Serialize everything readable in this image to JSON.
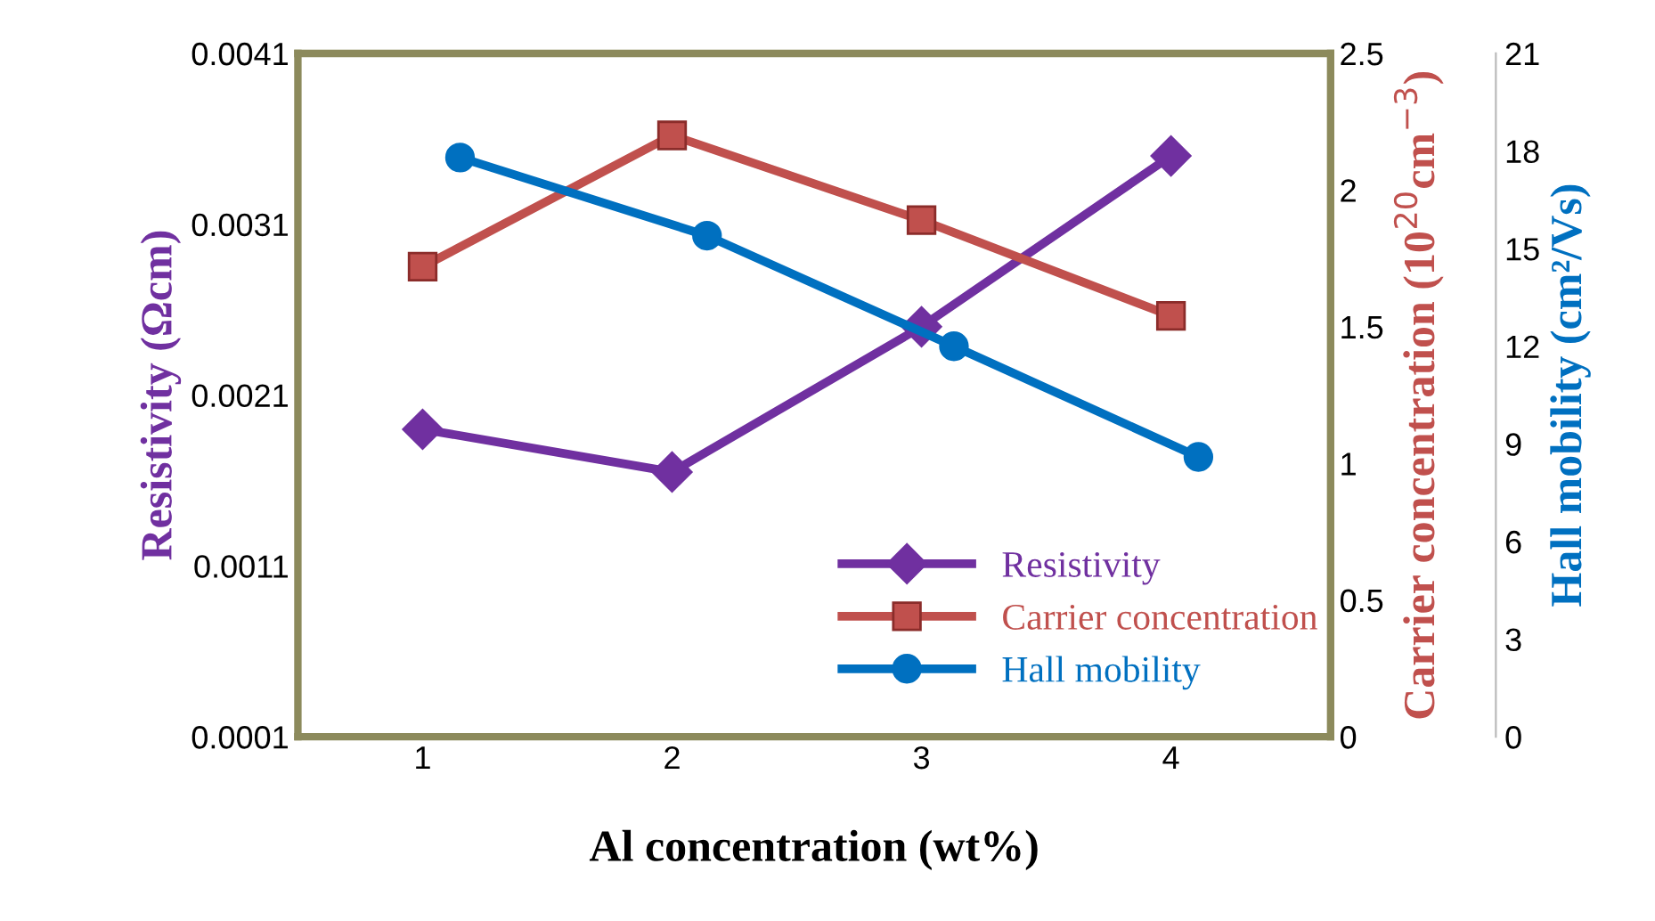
{
  "chart_data": {
    "type": "line",
    "xlabel": "Al concentration (wt%)",
    "ylabel": "Resistivity (Ωcm)",
    "y2label": "Carrier concentration (10$^{20}$cm$^{−3}$)",
    "y3label": "Hall mobility (cm²/Vs)",
    "xlim": [
      0.5,
      4.64
    ],
    "xticks": [
      1,
      2,
      3,
      4
    ],
    "ylim": [
      0.0001,
      0.0041
    ],
    "yticks": [
      0.0001,
      0.0011,
      0.0021,
      0.0031,
      0.0041
    ],
    "y2lim": [
      0,
      2.5
    ],
    "y2ticks": [
      0,
      0.5,
      1,
      1.5,
      2,
      2.5
    ],
    "y3lim": [
      0,
      21
    ],
    "y3ticks": [
      0,
      3,
      6,
      9,
      12,
      15,
      18,
      21
    ],
    "grid": false,
    "legend": "bottom right",
    "series": [
      {
        "name": "Resistivity",
        "color": "#7030a0",
        "marker": "diamond",
        "x": [
          1,
          2,
          3,
          4
        ],
        "values": [
          0.0019,
          0.00165,
          0.0025,
          0.0035
        ]
      },
      {
        "name": "Carrier concentration",
        "color": "#c0504d",
        "marker": "square",
        "axis": "y2",
        "x": [
          1,
          2,
          3,
          4
        ],
        "values": [
          1.72,
          2.2,
          1.89,
          1.54
        ]
      },
      {
        "name": "Hall mobility",
        "color": "#0070c0",
        "marker": "circle",
        "axis": "y3",
        "x": [
          1.15,
          2.14,
          3.13,
          4.11
        ],
        "values": [
          17.8,
          15.4,
          12.0,
          8.6
        ]
      }
    ]
  }
}
